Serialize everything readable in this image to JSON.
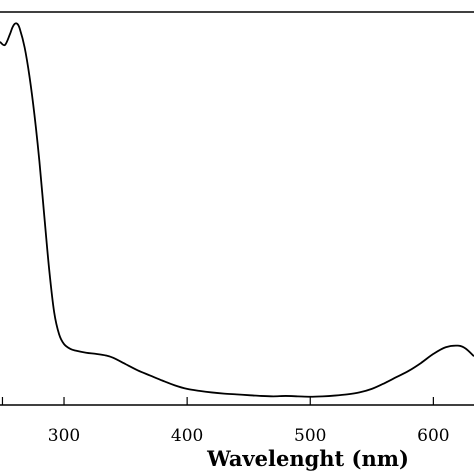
{
  "chart_data": {
    "type": "line",
    "title": "",
    "xlabel": "Wavelenght (nm)",
    "ylabel": "",
    "xlim": [
      248,
      633
    ],
    "ylim": [
      0,
      1
    ],
    "x_ticks": [
      300,
      400,
      500,
      600
    ],
    "x_tick_labels": [
      "300",
      "400",
      "500",
      "600"
    ],
    "grid": false,
    "legend": "none",
    "line_color": "#000000",
    "series": [
      {
        "x": [
          248,
          252,
          256,
          258,
          260,
          262,
          264,
          268,
          272,
          276,
          280,
          284,
          288,
          292,
          296,
          300,
          305,
          310,
          318,
          326,
          334,
          340,
          350,
          360,
          370,
          380,
          390,
          400,
          410,
          420,
          430,
          440,
          450,
          460,
          470,
          480,
          490,
          500,
          510,
          520,
          530,
          540,
          550,
          560,
          570,
          580,
          590,
          600,
          610,
          620,
          626,
          633
        ],
        "y": [
          0.924,
          0.916,
          0.943,
          0.96,
          0.97,
          0.97,
          0.958,
          0.91,
          0.835,
          0.738,
          0.62,
          0.48,
          0.343,
          0.236,
          0.18,
          0.155,
          0.143,
          0.138,
          0.133,
          0.13,
          0.126,
          0.12,
          0.104,
          0.088,
          0.075,
          0.062,
          0.05,
          0.041,
          0.036,
          0.032,
          0.029,
          0.027,
          0.025,
          0.023,
          0.022,
          0.023,
          0.022,
          0.021,
          0.022,
          0.024,
          0.027,
          0.032,
          0.041,
          0.055,
          0.071,
          0.087,
          0.107,
          0.13,
          0.147,
          0.151,
          0.144,
          0.124
        ]
      }
    ]
  }
}
